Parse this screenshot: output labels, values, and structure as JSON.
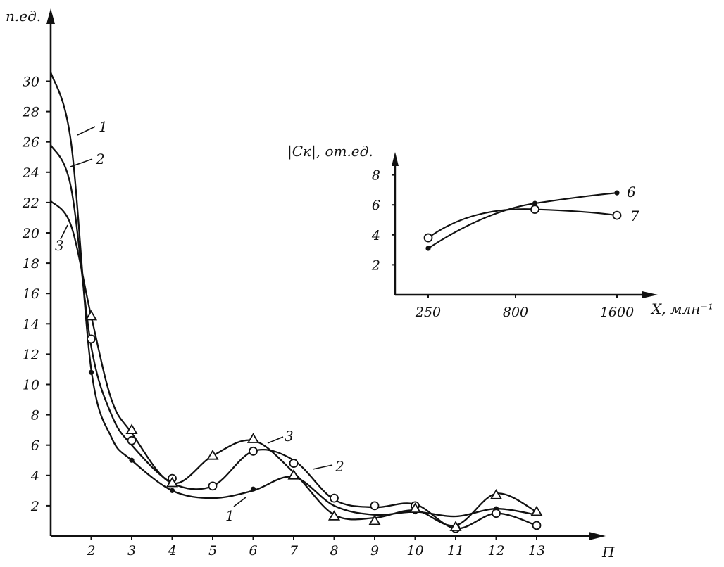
{
  "chart_data": [
    {
      "type": "line",
      "ylabel": "п.ед.",
      "xlabel": "П",
      "xlim": [
        1,
        14.2
      ],
      "ylim": [
        0,
        32
      ],
      "x_ticks": [
        2,
        3,
        4,
        5,
        6,
        7,
        8,
        9,
        10,
        11,
        12,
        13
      ],
      "y_ticks": [
        2,
        4,
        6,
        8,
        10,
        12,
        14,
        16,
        18,
        20,
        22,
        24,
        26,
        28,
        30
      ],
      "grid": false,
      "legend": "curve numbers next to lines",
      "series": [
        {
          "name": "1",
          "marker": "filled-dot",
          "curve": [
            [
              1.0,
              30.6
            ],
            [
              1.5,
              26.0
            ],
            [
              2.0,
              11.0
            ],
            [
              2.5,
              6.5
            ],
            [
              3.0,
              5.0
            ],
            [
              4.0,
              3.0
            ],
            [
              5.0,
              2.5
            ],
            [
              6.0,
              3.0
            ],
            [
              7.0,
              3.9
            ],
            [
              8.0,
              2.0
            ],
            [
              9.0,
              1.4
            ],
            [
              10.0,
              1.6
            ],
            [
              11.0,
              1.3
            ],
            [
              12.0,
              1.8
            ],
            [
              13.0,
              1.4
            ]
          ],
          "points": [
            [
              2.0,
              10.8
            ],
            [
              3.0,
              5.0
            ],
            [
              4.0,
              3.0
            ],
            [
              6.0,
              3.1
            ],
            [
              10.0,
              1.6
            ],
            [
              12.0,
              1.8
            ]
          ]
        },
        {
          "name": "2",
          "marker": "circle",
          "curve": [
            [
              1.0,
              25.8
            ],
            [
              1.5,
              23.0
            ],
            [
              2.0,
              12.5
            ],
            [
              2.5,
              8.0
            ],
            [
              3.0,
              6.0
            ],
            [
              4.0,
              3.5
            ],
            [
              5.0,
              3.3
            ],
            [
              6.0,
              5.6
            ],
            [
              7.0,
              5.0
            ],
            [
              8.0,
              2.4
            ],
            [
              9.0,
              1.9
            ],
            [
              10.0,
              2.1
            ],
            [
              11.0,
              0.5
            ],
            [
              12.0,
              1.5
            ],
            [
              13.0,
              0.7
            ]
          ],
          "points": [
            [
              2.0,
              13.0
            ],
            [
              3.0,
              6.3
            ],
            [
              4.0,
              3.8
            ],
            [
              5.0,
              3.3
            ],
            [
              6.0,
              5.6
            ],
            [
              7.0,
              4.8
            ],
            [
              8.0,
              2.5
            ],
            [
              9.0,
              2.0
            ],
            [
              10.0,
              2.0
            ],
            [
              11.0,
              0.5
            ],
            [
              12.0,
              1.5
            ],
            [
              13.0,
              0.7
            ]
          ]
        },
        {
          "name": "3",
          "marker": "triangle",
          "curve": [
            [
              1.0,
              22.1
            ],
            [
              1.5,
              20.5
            ],
            [
              2.0,
              14.5
            ],
            [
              2.5,
              9.0
            ],
            [
              3.0,
              6.8
            ],
            [
              4.0,
              3.5
            ],
            [
              5.0,
              5.3
            ],
            [
              6.0,
              6.3
            ],
            [
              7.0,
              4.2
            ],
            [
              8.0,
              1.4
            ],
            [
              9.0,
              1.2
            ],
            [
              10.0,
              1.7
            ],
            [
              11.0,
              0.7
            ],
            [
              12.0,
              2.8
            ],
            [
              13.0,
              1.6
            ]
          ],
          "points": [
            [
              2.0,
              14.5
            ],
            [
              3.0,
              7.0
            ],
            [
              4.0,
              3.5
            ],
            [
              5.0,
              5.3
            ],
            [
              6.0,
              6.4
            ],
            [
              7.0,
              4.0
            ],
            [
              8.0,
              1.3
            ],
            [
              9.0,
              1.0
            ],
            [
              10.0,
              1.8
            ],
            [
              11.0,
              0.6
            ],
            [
              12.0,
              2.7
            ],
            [
              13.0,
              1.6
            ]
          ]
        }
      ]
    },
    {
      "type": "line",
      "ylabel": "|Cк|, от.ед.",
      "xlabel": "X, млн⁻¹",
      "x_categories": [
        "250",
        "800",
        "1600"
      ],
      "ylim": [
        0,
        8.8
      ],
      "y_ticks": [
        2,
        4,
        6,
        8
      ],
      "grid": false,
      "legend": "curve numbers next to lines",
      "series": [
        {
          "name": "6",
          "marker": "filled-dot",
          "points": [
            [
              0.0,
              3.1
            ],
            [
              1.3,
              6.1
            ],
            [
              2.3,
              6.8
            ]
          ]
        },
        {
          "name": "7",
          "marker": "circle",
          "points": [
            [
              0.0,
              3.8
            ],
            [
              1.3,
              5.7
            ],
            [
              2.3,
              5.3
            ]
          ]
        }
      ]
    }
  ]
}
